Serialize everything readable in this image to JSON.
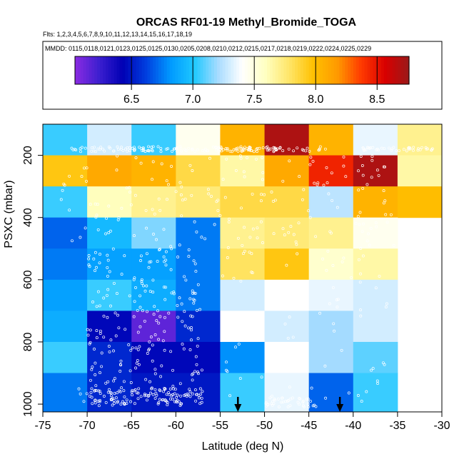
{
  "chart_data": {
    "type": "heatmap",
    "title": "ORCAS RF01-19 Methyl_Bromide_TOGA",
    "subtitle_flights": "Flts: 1,2,3,4,5,6,7,8,9,10,11,12,13,14,15,16,17,18,19",
    "subtitle_dates": "MMDD: 0115,0118,0121,0123,0125,0125,0130,0205,0208,0210,0212,0215,0217,0218,0219,0222,0224,0225,0229",
    "xlabel": "Latitude (deg N)",
    "ylabel": "PSXC (mbar)",
    "xlim": [
      -75,
      -30
    ],
    "ylim": [
      1025,
      100
    ],
    "x_ticks": [
      -75,
      -70,
      -65,
      -60,
      -55,
      -50,
      -45,
      -40,
      -35,
      -30
    ],
    "y_ticks": [
      200,
      400,
      600,
      800,
      1000
    ],
    "colorbar": {
      "range": [
        6.04,
        8.76
      ],
      "ticks": [
        6.5,
        7.0,
        7.5,
        8.0,
        8.5
      ],
      "colors": [
        "#8a2be2",
        "#3d1fd0",
        "#0000b4",
        "#0040e0",
        "#0099ff",
        "#1ec8ff",
        "#a8dcff",
        "#ffffff",
        "#ffffc0",
        "#ffe566",
        "#ffc000",
        "#ff9a00",
        "#ff3a00",
        "#d90000",
        "#9a1a1a"
      ]
    },
    "x_bins": [
      -75,
      -70,
      -65,
      -60,
      -55,
      -50,
      -45,
      -40,
      -35,
      -30
    ],
    "y_bins": [
      100,
      200,
      300,
      400,
      500,
      600,
      700,
      800,
      900,
      1025
    ],
    "values": [
      [
        7.05,
        7.3,
        7.05,
        7.45,
        8.05,
        8.7,
        8.05,
        7.35,
        7.7
      ],
      [
        7.95,
        8.1,
        8.05,
        7.85,
        7.65,
        8.1,
        8.45,
        8.7,
        7.65
      ],
      [
        7.05,
        7.6,
        7.7,
        7.75,
        7.85,
        7.85,
        7.25,
        8.05,
        8.0
      ],
      [
        6.7,
        6.95,
        7.15,
        6.75,
        7.7,
        7.75,
        7.7,
        7.45,
        null
      ],
      [
        6.75,
        6.85,
        6.85,
        6.75,
        7.8,
        7.95,
        7.55,
        7.65,
        null
      ],
      [
        6.85,
        7.05,
        6.9,
        6.75,
        7.3,
        7.4,
        7.35,
        7.3,
        null
      ],
      [
        6.9,
        6.45,
        6.15,
        6.55,
        7.4,
        7.3,
        7.2,
        7.3,
        null
      ],
      [
        7.05,
        6.55,
        6.45,
        6.45,
        6.8,
        7.4,
        7.2,
        7.1,
        null
      ],
      [
        6.75,
        6.55,
        6.5,
        6.5,
        7.05,
        7.35,
        6.7,
        7.05,
        null
      ]
    ],
    "arrow_markers": [
      -53,
      -41.5
    ]
  }
}
